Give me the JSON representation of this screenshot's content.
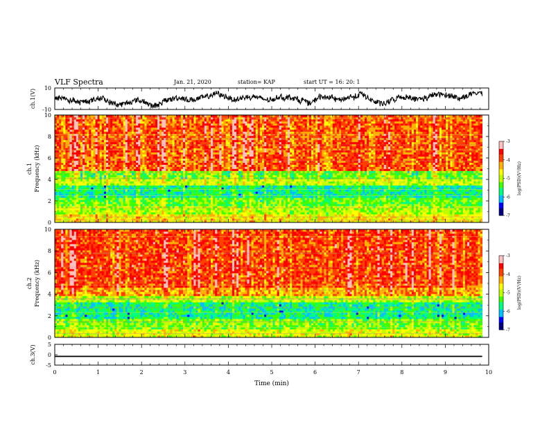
{
  "header": {
    "title": "VLF Spectra",
    "date": "Jan. 21, 2020",
    "station": "station= KAP",
    "start": "start UT =  16: 20: 1"
  },
  "chart_data": [
    {
      "type": "line",
      "panel": "ch1-waveform",
      "ylabel": "ch.1(V)",
      "yticks": [
        "10",
        "-10"
      ],
      "ylim": [
        -10,
        10
      ],
      "x_range_min": [
        0,
        9.85
      ],
      "description_values": "noisy waveform oscillating roughly between -8 and 7 V",
      "series": [
        {
          "color": "#000000"
        }
      ]
    },
    {
      "type": "heatmap",
      "panel": "ch1-spectrogram",
      "ylabel_line1": "ch.1",
      "ylabel_line2": "Frequency (kHz)",
      "yticks": [
        "0",
        "2",
        "4",
        "6",
        "8",
        "10"
      ],
      "ylim": [
        0,
        10
      ],
      "x_range_min": [
        0,
        9.85
      ],
      "bands": [
        {
          "from": 0,
          "to": 0.8,
          "level": -4.6
        },
        {
          "from": 0.8,
          "to": 1.6,
          "level": -5.0
        },
        {
          "from": 1.6,
          "to": 2.4,
          "level": -5.3
        },
        {
          "from": 2.4,
          "to": 3.5,
          "level": -5.7
        },
        {
          "from": 3.5,
          "to": 4.0,
          "level": -4.9
        },
        {
          "from": 4.0,
          "to": 4.8,
          "level": -5.2
        },
        {
          "from": 4.8,
          "to": 10,
          "level": -3.9
        }
      ],
      "colorbar": {
        "label": "log(PSD)(V²/Hz)",
        "ticks": [
          "-3",
          "-4",
          "-5",
          "-6",
          "-7"
        ],
        "range": [
          -7,
          -3
        ]
      }
    },
    {
      "type": "heatmap",
      "panel": "ch2-spectrogram",
      "ylabel_line1": "ch.2",
      "ylabel_line2": "Frequency (kHz)",
      "yticks": [
        "0",
        "2",
        "4",
        "6",
        "8",
        "10"
      ],
      "ylim": [
        0,
        10
      ],
      "x_range_min": [
        0,
        9.85
      ],
      "bands": [
        {
          "from": 0,
          "to": 0.8,
          "level": -4.8
        },
        {
          "from": 0.8,
          "to": 1.8,
          "level": -5.2
        },
        {
          "from": 1.8,
          "to": 3.2,
          "level": -5.7
        },
        {
          "from": 3.2,
          "to": 3.9,
          "level": -5.0
        },
        {
          "from": 3.9,
          "to": 4.6,
          "level": -4.2
        },
        {
          "from": 4.6,
          "to": 10,
          "level": -3.8
        }
      ],
      "colorbar": {
        "label": "log(PSD)(V²/Hz)",
        "ticks": [
          "-3",
          "-4",
          "-5",
          "-6",
          "-7"
        ],
        "range": [
          -7,
          -3
        ]
      }
    },
    {
      "type": "line",
      "panel": "ch3-waveform",
      "ylabel": "ch.3(V)",
      "yticks": [
        "5",
        "0",
        "-5"
      ],
      "ylim": [
        -5,
        5
      ],
      "x_range_min": [
        0,
        9.85
      ],
      "band": [
        -1.1,
        -0.5
      ],
      "series": [
        {
          "color": "#000000"
        }
      ]
    }
  ],
  "xaxis": {
    "label": "Time (min)",
    "ticks": [
      "0",
      "1",
      "2",
      "3",
      "4",
      "5",
      "6",
      "7",
      "8",
      "9",
      "10"
    ],
    "range": [
      0,
      10
    ]
  },
  "colors": {
    "scale": [
      "#000080",
      "#0000ff",
      "#00c0ff",
      "#00ff80",
      "#40ff00",
      "#c0ff00",
      "#ffff00",
      "#ffb000",
      "#ff4000",
      "#ff0000",
      "#ffc0c0"
    ]
  }
}
